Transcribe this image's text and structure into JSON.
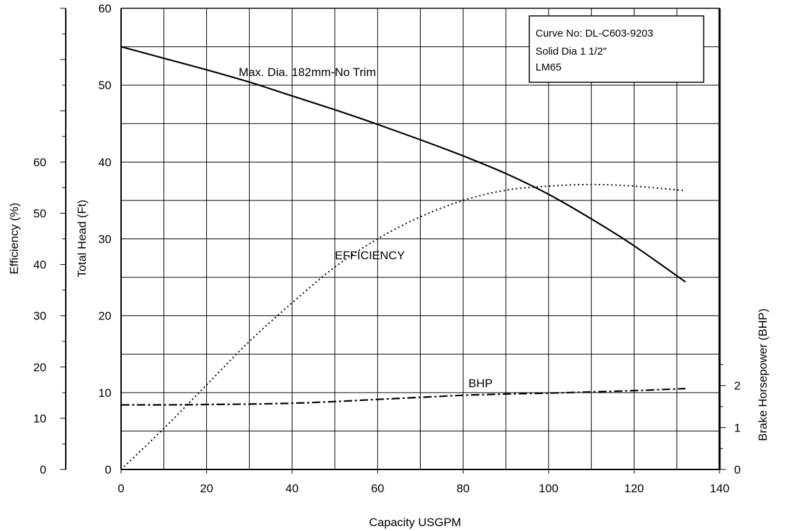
{
  "chart_data": {
    "type": "line",
    "xlabel": "Capacity USGPM",
    "ylabel_head": "Total Head (Ft)",
    "ylabel_efficiency": "Efficiency (%)",
    "ylabel_bhp": "Brake Horsepower (BHP)",
    "xlim": [
      0,
      140
    ],
    "xticks": [
      0,
      20,
      40,
      60,
      80,
      100,
      120,
      140
    ],
    "head_ylim": [
      0,
      60
    ],
    "head_ticks": [
      0,
      10,
      20,
      30,
      40,
      50,
      60
    ],
    "efficiency_ylim": [
      0,
      90
    ],
    "efficiency_ticks": [
      0,
      10,
      20,
      30,
      40,
      50,
      60
    ],
    "bhp_ylim": [
      0,
      11
    ],
    "bhp_ticks": [
      0,
      1,
      2
    ],
    "grid": true,
    "info_box": [
      "Curve No: DL-C603-9203",
      "Solid Dia 1 1/2\"",
      "LM65"
    ],
    "series": [
      {
        "name": "Max. Dia. 182mm-No Trim",
        "axis": "head",
        "style": "solid",
        "x": [
          0,
          10,
          20,
          30,
          40,
          50,
          60,
          70,
          80,
          90,
          100,
          110,
          120,
          132
        ],
        "y": [
          55,
          53.5,
          52,
          50.4,
          48.6,
          46.8,
          44.9,
          42.9,
          40.8,
          38.5,
          35.8,
          32.6,
          29.1,
          24.4
        ]
      },
      {
        "name": "EFFICIENCY",
        "axis": "efficiency",
        "style": "dotted",
        "x": [
          0,
          10,
          20,
          30,
          40,
          50,
          60,
          70,
          80,
          90,
          100,
          110,
          120,
          132
        ],
        "y": [
          0,
          8,
          16.5,
          25,
          32.5,
          39.5,
          45,
          49.3,
          52.5,
          54.5,
          55.3,
          55.6,
          55.3,
          54.4
        ]
      },
      {
        "name": "BHP",
        "axis": "bhp",
        "style": "dashdot",
        "x": [
          0,
          10,
          20,
          30,
          40,
          50,
          60,
          70,
          80,
          90,
          100,
          110,
          120,
          132
        ],
        "y": [
          1.54,
          1.54,
          1.55,
          1.56,
          1.58,
          1.62,
          1.67,
          1.72,
          1.77,
          1.8,
          1.82,
          1.85,
          1.88,
          1.93
        ]
      }
    ]
  }
}
